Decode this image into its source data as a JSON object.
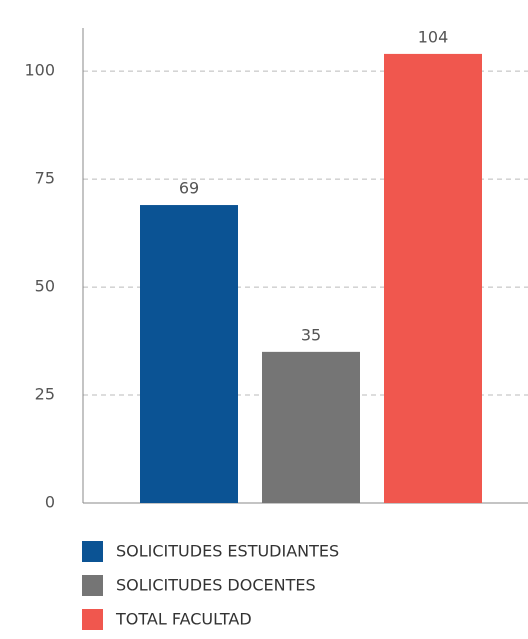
{
  "chart_data": {
    "type": "bar",
    "series": [
      {
        "name": "SOLICITUDES ESTUDIANTES",
        "color": "#0b5394",
        "values": [
          69
        ]
      },
      {
        "name": "SOLICITUDES DOCENTES",
        "color": "#757575",
        "values": [
          35
        ]
      },
      {
        "name": "TOTAL FACULTAD",
        "color": "#f0574e",
        "values": [
          104
        ]
      }
    ],
    "ylim": [
      0,
      110
    ],
    "yticks": [
      0,
      25,
      50,
      75,
      100
    ],
    "grid": true,
    "legend": "bottom"
  }
}
